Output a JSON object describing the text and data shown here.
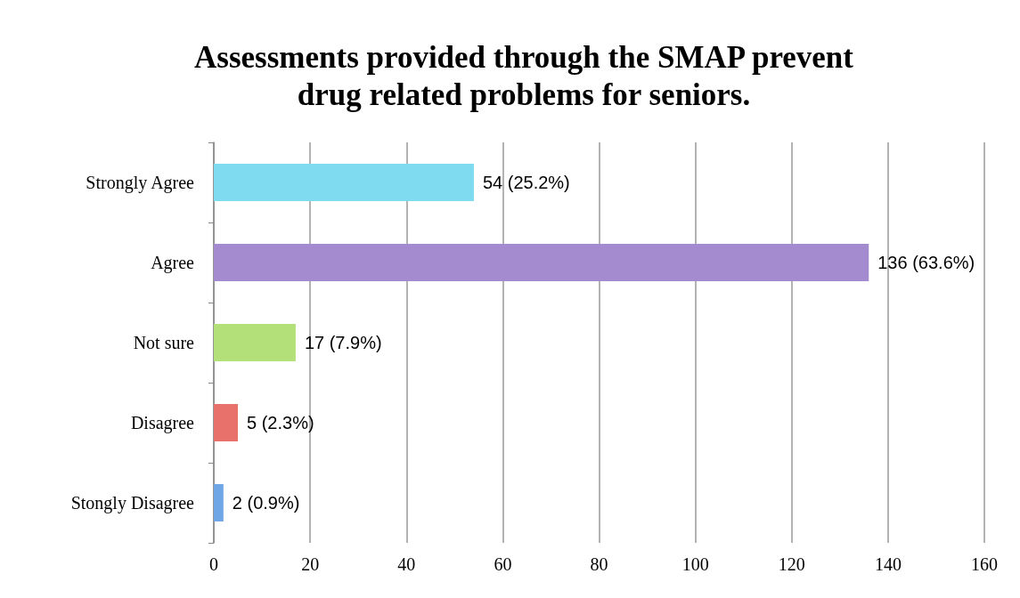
{
  "chart_data": {
    "type": "bar",
    "orientation": "horizontal",
    "title": "Assessments provided through the SMAP prevent\ndrug related problems for seniors.",
    "categories": [
      "Strongly Agree",
      "Agree",
      "Not sure",
      "Disagree",
      "Stongly Disagree"
    ],
    "values": [
      54,
      136,
      17,
      5,
      2
    ],
    "colors": [
      "#7fdcf0",
      "#a48bd0",
      "#b4e07a",
      "#e8716b",
      "#6ea6e6"
    ],
    "value_labels": [
      "54 (25.2%)",
      "136 (63.6%)",
      "17 (7.9%)",
      "5 (2.3%)",
      "2 (0.9%)"
    ],
    "xlim": [
      0,
      160
    ],
    "xticks": [
      0,
      20,
      40,
      60,
      80,
      100,
      120,
      140,
      160
    ],
    "grid": "x"
  }
}
